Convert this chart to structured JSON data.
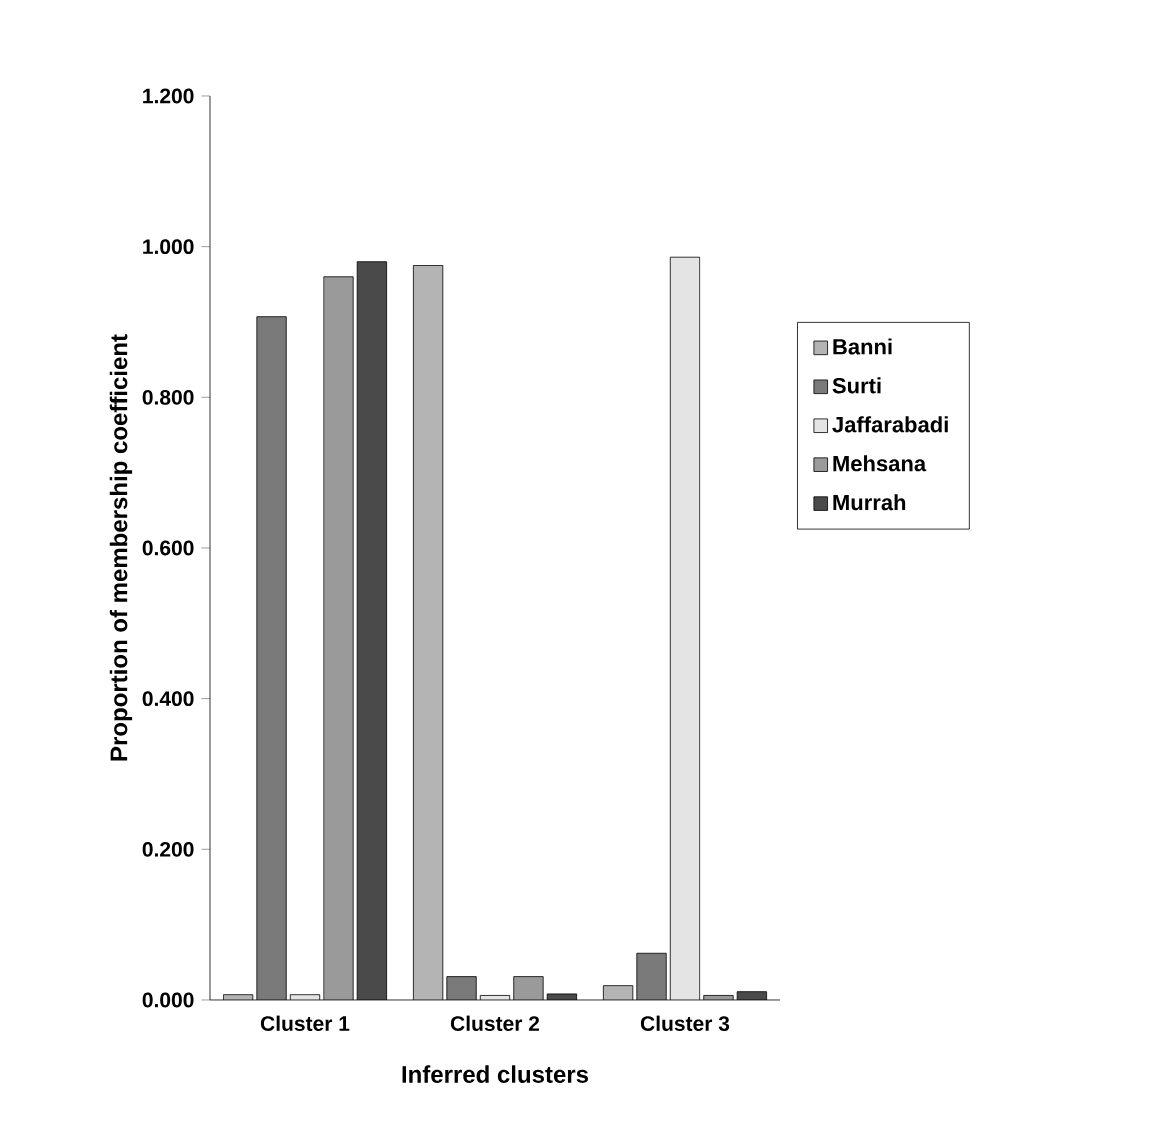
{
  "chart_data": {
    "type": "bar",
    "xlabel": "Inferred clusters",
    "ylabel": "Proportion of membership coefficient",
    "categories": [
      "Cluster 1",
      "Cluster 2",
      "Cluster 3"
    ],
    "series": [
      {
        "name": "Banni",
        "color": "#b4b4b4",
        "values": [
          0.007,
          0.975,
          0.019
        ]
      },
      {
        "name": "Surti",
        "color": "#7a7a7a",
        "values": [
          0.907,
          0.031,
          0.062
        ]
      },
      {
        "name": "Jaffarabadi",
        "color": "#e4e4e4",
        "values": [
          0.007,
          0.006,
          0.986
        ]
      },
      {
        "name": "Mehsana",
        "color": "#9a9a9a",
        "values": [
          0.96,
          0.031,
          0.006
        ]
      },
      {
        "name": "Murrah",
        "color": "#4a4a4a",
        "values": [
          0.98,
          0.008,
          0.011
        ]
      }
    ],
    "ylim": [
      0,
      1.2
    ],
    "yticks": [
      {
        "value": 0,
        "label": "0.000"
      },
      {
        "value": 0.2,
        "label": "0.200"
      },
      {
        "value": 0.4,
        "label": "0.400"
      },
      {
        "value": 0.6,
        "label": "0.600"
      },
      {
        "value": 0.8,
        "label": "0.800"
      },
      {
        "value": 1.0,
        "label": "1.000"
      },
      {
        "value": 1.2,
        "label": "1.200"
      }
    ],
    "grid": false,
    "legend": "right"
  }
}
